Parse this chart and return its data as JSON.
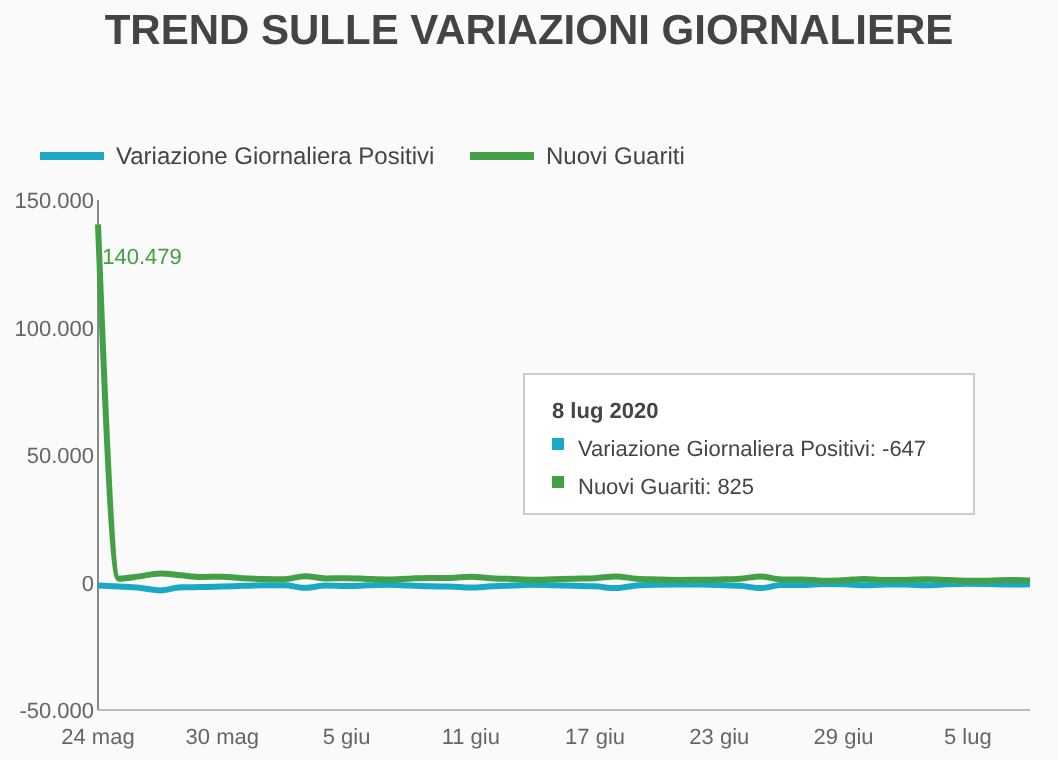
{
  "chart_data": {
    "type": "line",
    "title": "TREND SULLE VARIAZIONI GIORNALIERE",
    "x": [
      "2020-05-24",
      "2020-05-25",
      "2020-05-26",
      "2020-05-27",
      "2020-05-28",
      "2020-05-29",
      "2020-05-30",
      "2020-05-31",
      "2020-06-01",
      "2020-06-02",
      "2020-06-03",
      "2020-06-04",
      "2020-06-05",
      "2020-06-06",
      "2020-06-07",
      "2020-06-08",
      "2020-06-09",
      "2020-06-10",
      "2020-06-11",
      "2020-06-12",
      "2020-06-13",
      "2020-06-14",
      "2020-06-15",
      "2020-06-16",
      "2020-06-17",
      "2020-06-18",
      "2020-06-19",
      "2020-06-20",
      "2020-06-21",
      "2020-06-22",
      "2020-06-23",
      "2020-06-24",
      "2020-06-25",
      "2020-06-26",
      "2020-06-27",
      "2020-06-28",
      "2020-06-29",
      "2020-06-30",
      "2020-07-01",
      "2020-07-02",
      "2020-07-03",
      "2020-07-04",
      "2020-07-05",
      "2020-07-06",
      "2020-07-07",
      "2020-07-08"
    ],
    "series": [
      {
        "name": "Variazione Giornaliera Positivi",
        "color": "#1aa9c4",
        "values": [
          -1200,
          -1600,
          -2100,
          -3100,
          -1900,
          -1800,
          -1600,
          -1300,
          -1100,
          -1100,
          -2100,
          -1200,
          -1400,
          -1100,
          -900,
          -1200,
          -1500,
          -1600,
          -2000,
          -1500,
          -1200,
          -900,
          -1100,
          -1300,
          -1500,
          -2200,
          -1200,
          -900,
          -800,
          -800,
          -1000,
          -1300,
          -2200,
          -1000,
          -1000,
          -600,
          -700,
          -1100,
          -800,
          -800,
          -1100,
          -700,
          -500,
          -600,
          -800,
          -647
        ]
      },
      {
        "name": "Nuovi Guariti",
        "color": "#43a047",
        "values": [
          140479,
          1500,
          2400,
          3500,
          2800,
          2200,
          2300,
          1700,
          1400,
          1300,
          2500,
          1600,
          1700,
          1400,
          1200,
          1500,
          1800,
          1800,
          2300,
          1700,
          1400,
          1100,
          1300,
          1500,
          1700,
          2400,
          1500,
          1200,
          1000,
          1100,
          1200,
          1500,
          2400,
          1200,
          1200,
          700,
          900,
          1400,
          1000,
          1000,
          1300,
          1000,
          700,
          700,
          1000,
          825
        ],
        "value_labels": [
          "140.479",
          null,
          null,
          null,
          null,
          null,
          null,
          null,
          null,
          null,
          null,
          null,
          null,
          null,
          null,
          null,
          null,
          null,
          null,
          null,
          null,
          null,
          null,
          null,
          null,
          null,
          null,
          null,
          null,
          null,
          null,
          null,
          null,
          null,
          null,
          null,
          null,
          null,
          null,
          null,
          null,
          null,
          null,
          null,
          null,
          null
        ]
      }
    ],
    "xticks": [
      {
        "value": "2020-05-24",
        "label": "24 mag"
      },
      {
        "value": "2020-05-30",
        "label": "30 mag"
      },
      {
        "value": "2020-06-05",
        "label": "5 giu"
      },
      {
        "value": "2020-06-11",
        "label": "11 giu"
      },
      {
        "value": "2020-06-17",
        "label": "17 giu"
      },
      {
        "value": "2020-06-23",
        "label": "23 giu"
      },
      {
        "value": "2020-06-29",
        "label": "29 giu"
      },
      {
        "value": "2020-07-05",
        "label": "5 lug"
      }
    ],
    "xlim": [
      "2020-05-24",
      "2020-07-08"
    ],
    "ylim": [
      -50000,
      150000
    ],
    "yticks": [
      {
        "value": -50000,
        "label": "-50.000"
      },
      {
        "value": 0,
        "label": "0"
      },
      {
        "value": 50000,
        "label": "50.000"
      },
      {
        "value": 100000,
        "label": "100.000"
      },
      {
        "value": 150000,
        "label": "150.000"
      }
    ],
    "legend": "top",
    "marker": "none",
    "line_style": "solid",
    "grid": false,
    "annotations": [
      "8 lug 2020",
      "Variazione Giornaliera Positivi: -647",
      "Nuovi Guariti: 825"
    ]
  }
}
